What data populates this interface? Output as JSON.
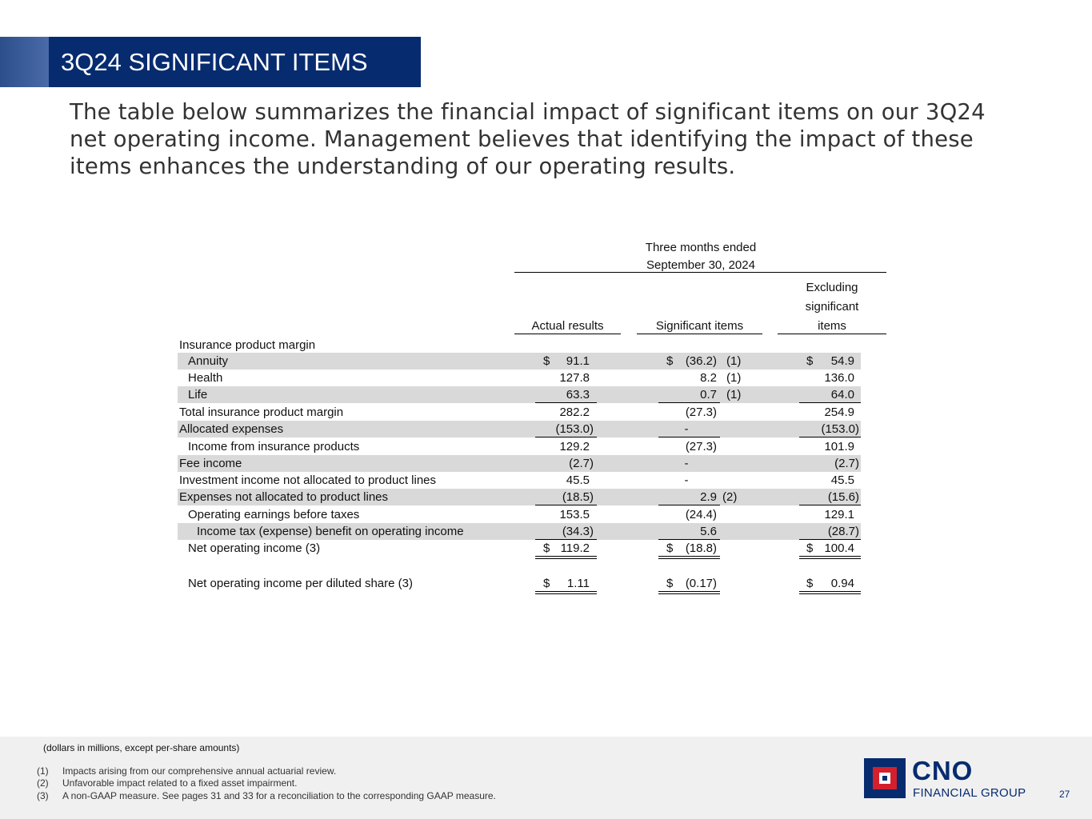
{
  "title": "3Q24 SIGNIFICANT ITEMS",
  "intro": "The table below summarizes the financial impact of significant items on our 3Q24 net operating income. Management believes that identifying the impact of these items enhances the understanding of our operating results.",
  "table": {
    "period_line1": "Three months ended",
    "period_line2": "September 30, 2024",
    "col_actual": "Actual results",
    "col_significant": "Significant items",
    "col_excl_1": "Excluding",
    "col_excl_2": "significant",
    "col_excl_3": "items",
    "section_label": "Insurance product margin",
    "rows": [
      {
        "label": "Annuity",
        "actual": "91.1",
        "sig": "(36.2)",
        "note": "(1)",
        "excl": "54.9"
      },
      {
        "label": "Health",
        "actual": "127.8",
        "sig": "8.2",
        "note": "(1)",
        "excl": "136.0"
      },
      {
        "label": "Life",
        "actual": "63.3",
        "sig": "0.7",
        "note": "(1)",
        "excl": "64.0"
      },
      {
        "label": "Total insurance product margin",
        "actual": "282.2",
        "sig": "(27.3)",
        "note": "",
        "excl": "254.9"
      },
      {
        "label": "Allocated expenses",
        "actual": "(153.0)",
        "sig": "-",
        "note": "",
        "excl": "(153.0)"
      },
      {
        "label": "Income from insurance products",
        "actual": "129.2",
        "sig": "(27.3)",
        "note": "",
        "excl": "101.9"
      },
      {
        "label": "Fee income",
        "actual": "(2.7)",
        "sig": "-",
        "note": "",
        "excl": "(2.7)"
      },
      {
        "label": "Investment income not allocated to product lines",
        "actual": "45.5",
        "sig": "-",
        "note": "",
        "excl": "45.5"
      },
      {
        "label": "Expenses not allocated to product lines",
        "actual": "(18.5)",
        "sig": "2.9",
        "note": "(2)",
        "excl": "(15.6)"
      },
      {
        "label": "Operating earnings before taxes",
        "actual": "153.5",
        "sig": "(24.4)",
        "note": "",
        "excl": "129.1"
      },
      {
        "label": "Income tax (expense) benefit on operating income",
        "actual": "(34.3)",
        "sig": "5.6",
        "note": "",
        "excl": "(28.7)"
      },
      {
        "label": "Net operating income (3)",
        "actual": "119.2",
        "sig": "(18.8)",
        "note": "",
        "excl": "100.4"
      },
      {
        "label": "Net operating income per diluted share (3)",
        "actual": "1.11",
        "sig": "(0.17)",
        "note": "",
        "excl": "0.94"
      }
    ]
  },
  "currency_symbol": "$",
  "units_note": "(dollars in millions, except per-share amounts)",
  "footnotes": [
    {
      "num": "(1)",
      "text": "Impacts arising from our comprehensive annual actuarial review."
    },
    {
      "num": "(2)",
      "text": "Unfavorable impact related to a fixed asset impairment."
    },
    {
      "num": "(3)",
      "text": "A non-GAAP measure. See pages 31 and 33 for a reconciliation to the corresponding GAAP measure."
    }
  ],
  "logo": {
    "name": "CNO",
    "subtitle": "FINANCIAL GROUP"
  },
  "page_number": "27",
  "colors": {
    "navy": "#062b6f",
    "red": "#d4202c",
    "shade": "#d9d9d9"
  }
}
